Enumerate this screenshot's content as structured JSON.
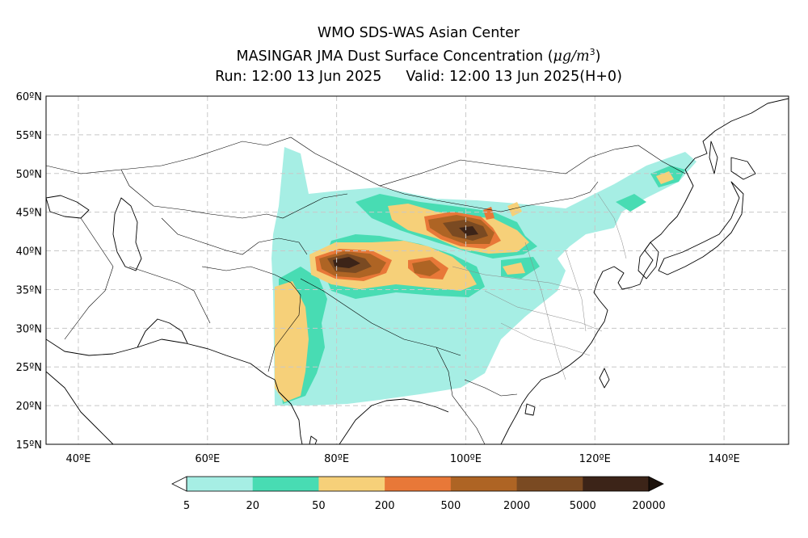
{
  "header": {
    "line1": "WMO SDS-WAS Asian Center",
    "line2_prefix": "MASINGAR JMA Dust Surface Concentration (",
    "line2_unit": "μg/m",
    "line2_unit_sup": "3",
    "line2_suffix": ")",
    "run": "Run: 12:00 13 Jun 2025",
    "valid": "Valid: 12:00 13 Jun 2025(H+0)"
  },
  "map": {
    "lon_labels": [
      "40ºE",
      "60ºE",
      "80ºE",
      "100ºE",
      "120ºE",
      "140ºE"
    ],
    "lat_labels": [
      "60ºN",
      "55ºN",
      "50ºN",
      "45ºN",
      "40ºN",
      "35ºN",
      "30ºN",
      "25ºN",
      "20ºN",
      "15ºN"
    ],
    "extent": {
      "lon": [
        35,
        150
      ],
      "lat": [
        15,
        60
      ]
    },
    "gridlines": true
  },
  "colorbar": {
    "ticks": [
      "5",
      "20",
      "50",
      "200",
      "500",
      "2000",
      "5000",
      "20000"
    ],
    "colors": [
      "#a6eee4",
      "#48dcb3",
      "#f6d079",
      "#e87838",
      "#ae6424",
      "#7a4a22",
      "#3c2418"
    ],
    "extend": "both"
  },
  "colors": {
    "c5": "#a6eee4",
    "c20": "#48dcb3",
    "c50": "#f6d079",
    "c200": "#e87838",
    "c500": "#ae6424",
    "c2000": "#7a4a22",
    "c5000": "#3c2418",
    "grid": "#c8c8c8",
    "coast": "#000000"
  }
}
